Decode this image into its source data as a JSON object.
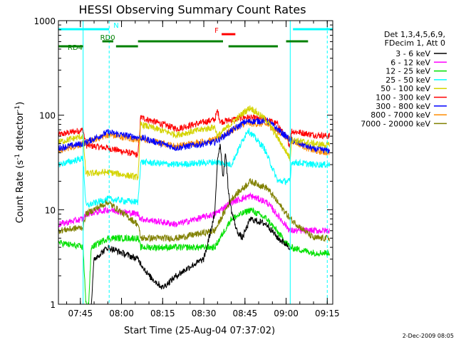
{
  "footer_date": "2-Dec-2009 08:05",
  "chart_data": {
    "type": "line",
    "title": "HESSI Observing Summary Count Rates",
    "xlabel": "Start Time (25-Aug-04 07:37:02)",
    "ylabel_main": "Count Rate (s",
    "ylabel_sup1": "-1",
    "ylabel_mid": " detector",
    "ylabel_sup2": "-1",
    "ylabel_end": ")",
    "y_scale": "log",
    "ylim": [
      1,
      1000
    ],
    "y_ticks": [
      {
        "value": 1,
        "label": "1"
      },
      {
        "value": 10,
        "label": "10"
      },
      {
        "value": 100,
        "label": "100"
      },
      {
        "value": 1000,
        "label": "1000"
      }
    ],
    "x_domain_minutes": [
      457,
      557
    ],
    "x_ticks": [
      {
        "minute": 465,
        "label": "07:45"
      },
      {
        "minute": 480,
        "label": "08:00"
      },
      {
        "minute": 495,
        "label": "08:15"
      },
      {
        "minute": 510,
        "label": "08:30"
      },
      {
        "minute": 525,
        "label": "08:45"
      },
      {
        "minute": 540,
        "label": "09:00"
      },
      {
        "minute": 555,
        "label": "09:15"
      }
    ],
    "legend": {
      "placement": "right",
      "header": [
        "Det 1,3,4,5,6,9,",
        "FDecim 1, Att 0"
      ],
      "entries": [
        {
          "label": "3 - 6 keV",
          "color": "#000000"
        },
        {
          "label": "6 - 12 keV",
          "color": "#ff00ff"
        },
        {
          "label": "12 - 25 keV",
          "color": "#00e000"
        },
        {
          "label": "25 - 50 keV",
          "color": "#00ffff"
        },
        {
          "label": "50 - 100 keV",
          "color": "#d4d400"
        },
        {
          "label": "100 - 300 keV",
          "color": "#ff0000"
        },
        {
          "label": "300 - 800 keV",
          "color": "#0000ff"
        },
        {
          "label": "800 - 7000 keV",
          "color": "#ff8c00"
        },
        {
          "label": "7000 - 20000 keV",
          "color": "#808000"
        }
      ]
    },
    "flags": [
      {
        "label": "N",
        "color": "#00ffff",
        "segments": [
          [
            457,
            475.5
          ],
          [
            542.5,
            557
          ]
        ],
        "level": 1
      },
      {
        "label": "F",
        "color": "#ff0000",
        "segments": [
          [
            516.5,
            521.5
          ]
        ],
        "level": 2
      },
      {
        "label": "RD0",
        "color": "#008000",
        "segments": [
          [
            473,
            477
          ],
          [
            486,
            517
          ],
          [
            540,
            548
          ]
        ],
        "level": 3
      },
      {
        "label": "RD4",
        "color": "#008000",
        "segments": [
          [
            457,
            466
          ],
          [
            478,
            486
          ],
          [
            519,
            537
          ]
        ],
        "level": 4
      }
    ],
    "boundaries_solid_minutes": [
      466,
      541.5
    ],
    "boundaries_dashed_minutes": [
      475.5,
      555
    ],
    "series": [
      {
        "name": "100 - 300 keV",
        "color": "#ff0000",
        "points": [
          [
            457,
            62
          ],
          [
            466,
            70
          ],
          [
            467,
            48
          ],
          [
            475,
            45
          ],
          [
            486,
            38
          ],
          [
            487,
            95
          ],
          [
            500,
            72
          ],
          [
            514,
            90
          ],
          [
            515,
            112
          ],
          [
            516,
            85
          ],
          [
            525,
            95
          ],
          [
            533,
            90
          ],
          [
            537,
            80
          ],
          [
            541.5,
            48
          ],
          [
            542,
            68
          ],
          [
            550,
            62
          ],
          [
            556,
            60
          ]
        ]
      },
      {
        "name": "800 - 7000 keV",
        "color": "#ff8c00",
        "points": [
          [
            457,
            42
          ],
          [
            466,
            50
          ],
          [
            475,
            62
          ],
          [
            486,
            55
          ],
          [
            487,
            56
          ],
          [
            500,
            47
          ],
          [
            514,
            55
          ],
          [
            525,
            82
          ],
          [
            533,
            80
          ],
          [
            541.5,
            55
          ],
          [
            550,
            42
          ],
          [
            556,
            40
          ]
        ]
      },
      {
        "name": "300 - 800 keV",
        "color": "#0000ff",
        "points": [
          [
            457,
            45
          ],
          [
            466,
            50
          ],
          [
            475,
            66
          ],
          [
            486,
            58
          ],
          [
            487,
            58
          ],
          [
            500,
            45
          ],
          [
            514,
            52
          ],
          [
            525,
            85
          ],
          [
            533,
            88
          ],
          [
            541.5,
            55
          ],
          [
            550,
            44
          ],
          [
            556,
            42
          ]
        ]
      },
      {
        "name": "50 - 100 keV",
        "color": "#d4d400",
        "points": [
          [
            457,
            52
          ],
          [
            466,
            60
          ],
          [
            467,
            24
          ],
          [
            475,
            25
          ],
          [
            486,
            22
          ],
          [
            487,
            80
          ],
          [
            500,
            62
          ],
          [
            514,
            75
          ],
          [
            515,
            60
          ],
          [
            525,
            110
          ],
          [
            527,
            120
          ],
          [
            533,
            88
          ],
          [
            541.5,
            35
          ],
          [
            542,
            55
          ],
          [
            550,
            50
          ],
          [
            556,
            48
          ]
        ]
      },
      {
        "name": "25 - 50 keV",
        "color": "#00ffff",
        "points": [
          [
            457,
            30
          ],
          [
            466,
            35
          ],
          [
            467,
            11
          ],
          [
            475,
            13
          ],
          [
            486,
            12
          ],
          [
            487,
            32
          ],
          [
            500,
            30
          ],
          [
            514,
            32
          ],
          [
            520,
            30
          ],
          [
            526,
            70
          ],
          [
            532,
            45
          ],
          [
            537,
            20
          ],
          [
            541.5,
            20
          ],
          [
            542,
            32
          ],
          [
            550,
            30
          ],
          [
            556,
            30
          ]
        ]
      },
      {
        "name": "6 - 12 keV",
        "color": "#ff00ff",
        "points": [
          [
            457,
            7
          ],
          [
            466,
            8
          ],
          [
            467,
            9
          ],
          [
            475,
            10
          ],
          [
            486,
            9
          ],
          [
            487,
            8
          ],
          [
            500,
            7
          ],
          [
            514,
            9
          ],
          [
            520,
            12
          ],
          [
            527,
            14
          ],
          [
            533,
            12
          ],
          [
            541.5,
            6
          ],
          [
            550,
            6
          ],
          [
            556,
            6
          ]
        ]
      },
      {
        "name": "7000 - 20000 keV",
        "color": "#808000",
        "points": [
          [
            457,
            6
          ],
          [
            466,
            6.5
          ],
          [
            467,
            9
          ],
          [
            475,
            12
          ],
          [
            486,
            7
          ],
          [
            487,
            5
          ],
          [
            500,
            5
          ],
          [
            514,
            6
          ],
          [
            520,
            13
          ],
          [
            527,
            20
          ],
          [
            533,
            17
          ],
          [
            541.5,
            8
          ],
          [
            550,
            5
          ],
          [
            556,
            5
          ]
        ]
      },
      {
        "name": "12 - 25 keV",
        "color": "#00e000",
        "points": [
          [
            457,
            4.5
          ],
          [
            466,
            4
          ],
          [
            467,
            1
          ],
          [
            468,
            1
          ],
          [
            469,
            4
          ],
          [
            475,
            5
          ],
          [
            486,
            5
          ],
          [
            487,
            4
          ],
          [
            500,
            4
          ],
          [
            514,
            4
          ],
          [
            520,
            8
          ],
          [
            527,
            10
          ],
          [
            533,
            8
          ],
          [
            541.5,
            4
          ],
          [
            550,
            3.5
          ],
          [
            556,
            3.5
          ]
        ]
      },
      {
        "name": "3 - 6 keV",
        "color": "#000000",
        "points": [
          [
            469,
            1
          ],
          [
            470,
            3
          ],
          [
            475,
            4
          ],
          [
            486,
            3
          ],
          [
            490,
            2
          ],
          [
            495,
            1.5
          ],
          [
            500,
            2
          ],
          [
            505,
            2.5
          ],
          [
            510,
            3
          ],
          [
            514,
            9
          ],
          [
            515,
            35
          ],
          [
            516,
            50
          ],
          [
            517,
            22
          ],
          [
            518,
            40
          ],
          [
            519,
            15
          ],
          [
            520,
            10
          ],
          [
            522,
            6
          ],
          [
            524,
            5
          ],
          [
            527,
            8
          ],
          [
            533,
            7
          ],
          [
            537,
            5
          ],
          [
            541.5,
            4
          ]
        ]
      }
    ]
  }
}
